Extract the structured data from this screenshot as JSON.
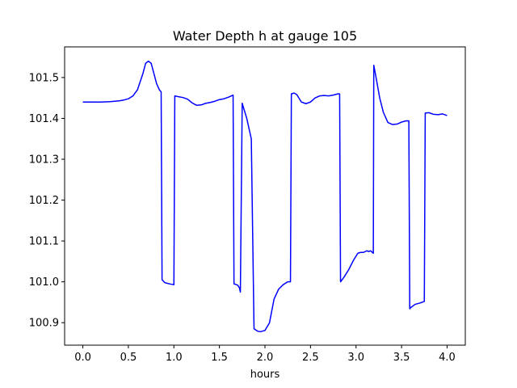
{
  "chart_data": {
    "type": "line",
    "title": "Water Depth h at gauge 105",
    "xlabel": "hours",
    "ylabel": "",
    "xlim": [
      -0.2,
      4.2
    ],
    "ylim": [
      100.845,
      101.575
    ],
    "grid": false,
    "xticks": [
      0.0,
      0.5,
      1.0,
      1.5,
      2.0,
      2.5,
      3.0,
      3.5,
      4.0
    ],
    "xtick_labels": [
      "0.0",
      "0.5",
      "1.0",
      "1.5",
      "2.0",
      "2.5",
      "3.0",
      "3.5",
      "4.0"
    ],
    "yticks": [
      100.9,
      101.0,
      101.1,
      101.2,
      101.3,
      101.4,
      101.5
    ],
    "ytick_labels": [
      "100.9",
      "101.0",
      "101.1",
      "101.2",
      "101.3",
      "101.4",
      "101.5"
    ],
    "series": [
      {
        "color": "#0000ff",
        "x": [
          0.0,
          0.1,
          0.2,
          0.3,
          0.4,
          0.45,
          0.5,
          0.55,
          0.6,
          0.63,
          0.66,
          0.69,
          0.72,
          0.75,
          0.78,
          0.81,
          0.84,
          0.86,
          0.87,
          0.9,
          0.95,
          1.0,
          1.01,
          1.05,
          1.1,
          1.15,
          1.2,
          1.25,
          1.3,
          1.35,
          1.4,
          1.45,
          1.5,
          1.55,
          1.6,
          1.65,
          1.66,
          1.7,
          1.72,
          1.73,
          1.75,
          1.8,
          1.84,
          1.85,
          1.88,
          1.92,
          1.95,
          2.0,
          2.05,
          2.1,
          2.15,
          2.2,
          2.25,
          2.28,
          2.29,
          2.32,
          2.35,
          2.4,
          2.45,
          2.5,
          2.55,
          2.6,
          2.65,
          2.7,
          2.75,
          2.8,
          2.82,
          2.83,
          2.87,
          2.92,
          2.97,
          3.02,
          3.05,
          3.08,
          3.1,
          3.12,
          3.14,
          3.16,
          3.18,
          3.19,
          3.195,
          3.22,
          3.26,
          3.3,
          3.35,
          3.4,
          3.45,
          3.5,
          3.55,
          3.58,
          3.59,
          3.6,
          3.65,
          3.7,
          3.75,
          3.76,
          3.8,
          3.85,
          3.9,
          3.95,
          4.0
        ],
        "y": [
          101.44,
          101.44,
          101.44,
          101.441,
          101.443,
          101.445,
          101.448,
          101.455,
          101.47,
          101.49,
          101.51,
          101.535,
          101.54,
          101.535,
          101.51,
          101.485,
          101.47,
          101.465,
          101.005,
          100.998,
          100.995,
          100.993,
          101.455,
          101.453,
          101.451,
          101.447,
          101.438,
          101.432,
          101.433,
          101.437,
          101.439,
          101.442,
          101.446,
          101.448,
          101.452,
          101.457,
          100.995,
          100.992,
          100.985,
          100.975,
          101.437,
          101.4,
          101.36,
          101.35,
          100.885,
          100.879,
          100.878,
          100.881,
          100.9,
          100.958,
          100.982,
          100.993,
          101.0,
          101.0,
          101.46,
          101.462,
          101.458,
          101.44,
          101.436,
          101.44,
          101.45,
          101.455,
          101.456,
          101.455,
          101.457,
          101.46,
          101.46,
          101.0,
          101.012,
          101.03,
          101.052,
          101.07,
          101.072,
          101.072,
          101.074,
          101.076,
          101.074,
          101.076,
          101.072,
          101.07,
          101.53,
          101.5,
          101.45,
          101.415,
          101.39,
          101.385,
          101.386,
          101.391,
          101.394,
          101.394,
          100.934,
          100.937,
          100.945,
          100.948,
          100.952,
          101.413,
          101.414,
          101.41,
          101.409,
          101.411,
          101.407
        ]
      }
    ]
  }
}
